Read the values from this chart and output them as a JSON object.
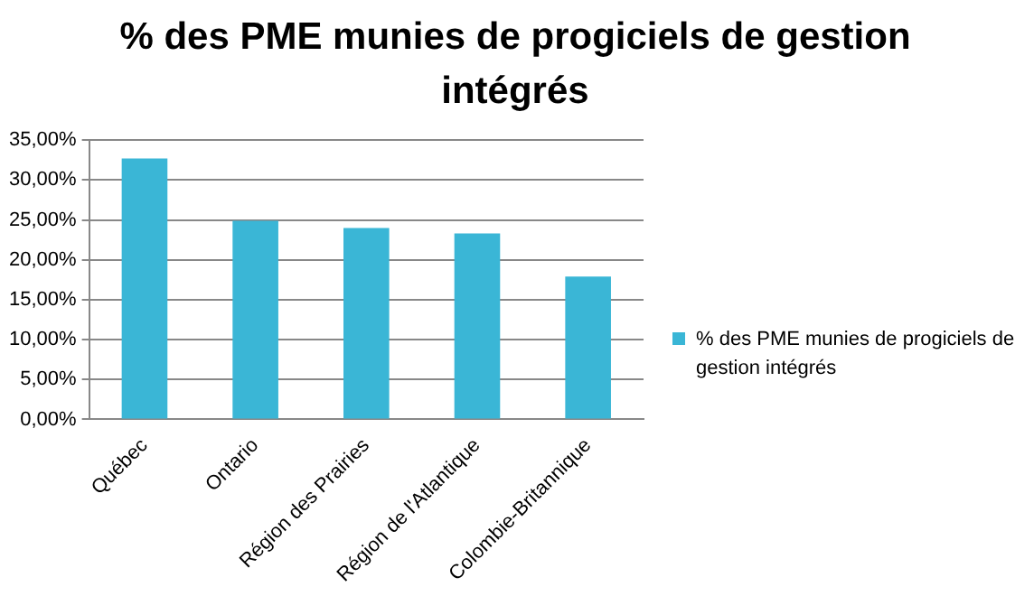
{
  "chart_data": {
    "type": "bar",
    "title": "% des PME munies de progiciels de gestion intégrés",
    "categories": [
      "Québec",
      "Ontario",
      "Région des Prairies",
      "Région de l'Atlantique",
      "Colombie-Britannique"
    ],
    "series": [
      {
        "name": "% des PME munies de progiciels de gestion intégrés",
        "color": "#3ab6d6",
        "values": [
          32.7,
          24.9,
          24.0,
          23.3,
          17.9
        ]
      }
    ],
    "ylim": [
      0,
      35
    ],
    "yticks": [
      {
        "value": 0,
        "label": "0,00%"
      },
      {
        "value": 5,
        "label": "5,00%"
      },
      {
        "value": 10,
        "label": "10,00%"
      },
      {
        "value": 15,
        "label": "15,00%"
      },
      {
        "value": 20,
        "label": "20,00%"
      },
      {
        "value": 25,
        "label": "25,00%"
      },
      {
        "value": 30,
        "label": "30,00%"
      },
      {
        "value": 35,
        "label": "35,00%"
      }
    ],
    "grid": "y",
    "legend": "right"
  }
}
